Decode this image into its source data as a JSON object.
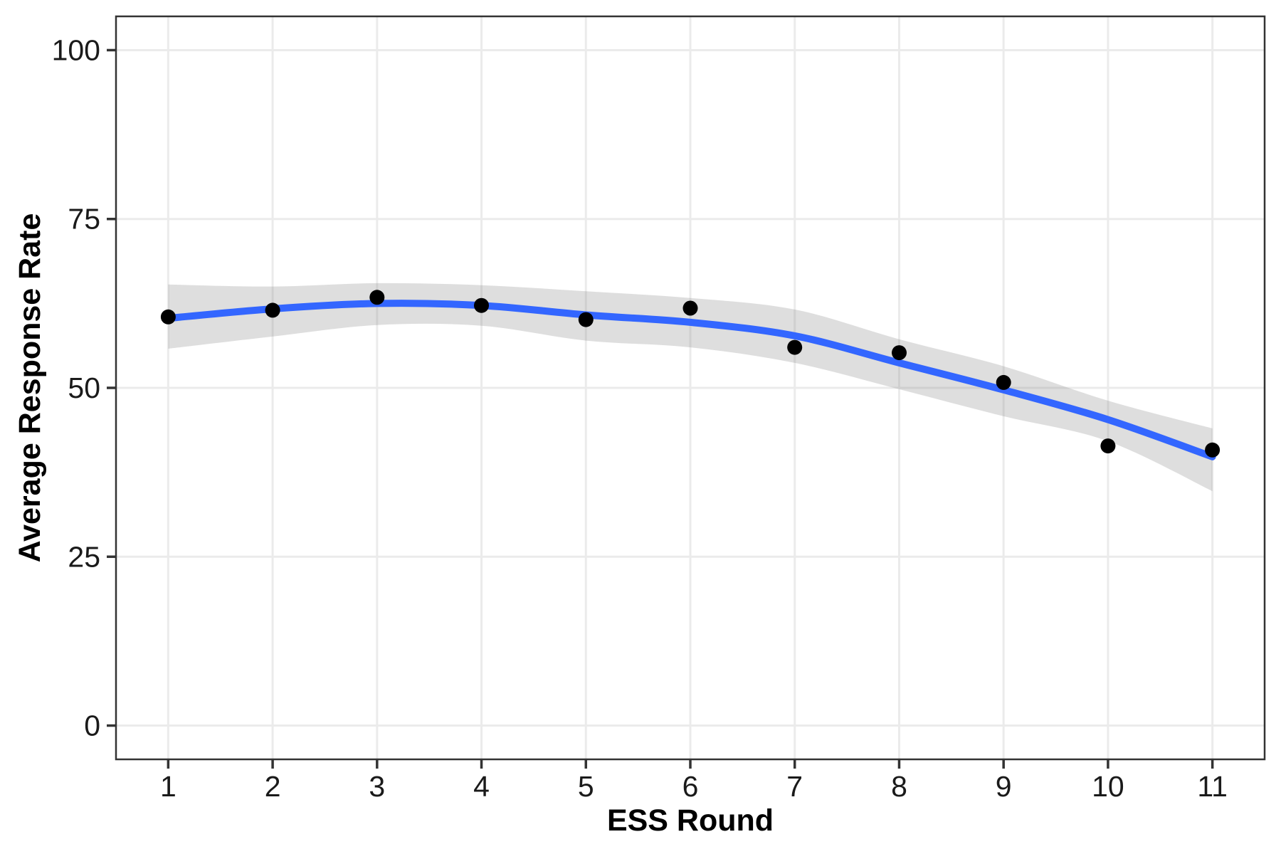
{
  "chart_data": {
    "type": "scatter",
    "title": "",
    "xlabel": "ESS Round",
    "ylabel": "Average Response Rate",
    "x": [
      1,
      2,
      3,
      4,
      5,
      6,
      7,
      8,
      9,
      10,
      11
    ],
    "x_tick_labels": [
      "1",
      "2",
      "3",
      "4",
      "5",
      "6",
      "7",
      "8",
      "9",
      "10",
      "11"
    ],
    "y_ticks": [
      0,
      25,
      50,
      75,
      100
    ],
    "y_tick_labels": [
      "0",
      "25",
      "50",
      "75",
      "100"
    ],
    "series": [
      {
        "name": "average_response_rate_points",
        "type": "point",
        "values": [
          60.5,
          61.5,
          63.4,
          62.2,
          60.1,
          61.8,
          56.0,
          55.2,
          50.8,
          41.4,
          40.8
        ]
      },
      {
        "name": "loess_smooth",
        "type": "line",
        "values": [
          60.3,
          61.7,
          62.5,
          62.2,
          60.8,
          59.7,
          57.7,
          53.7,
          49.7,
          45.3,
          39.8
        ]
      },
      {
        "name": "confidence_band",
        "type": "ribbon",
        "upper": [
          65.3,
          65.0,
          65.5,
          65.2,
          64.3,
          63.3,
          61.6,
          57.2,
          53.2,
          48.1,
          44.0
        ],
        "lower": [
          55.8,
          57.6,
          59.3,
          59.2,
          57.0,
          56.0,
          53.7,
          49.8,
          45.8,
          42.1,
          34.7
        ]
      }
    ],
    "xlim": [
      0.5,
      11.5
    ],
    "ylim": [
      -5,
      105
    ],
    "grid": "major-only",
    "legend": "none",
    "colors": {
      "point": "#000000",
      "smooth_line": "#3366FF",
      "ribbon": "rgba(128,128,128,0.26)",
      "gridline": "#EBEBEB",
      "panel_border": "#333333",
      "tick_mark": "#333333",
      "tick_label": "#1a1a1a",
      "axis_title": "#000000",
      "panel_background": "#FFFFFF"
    }
  }
}
